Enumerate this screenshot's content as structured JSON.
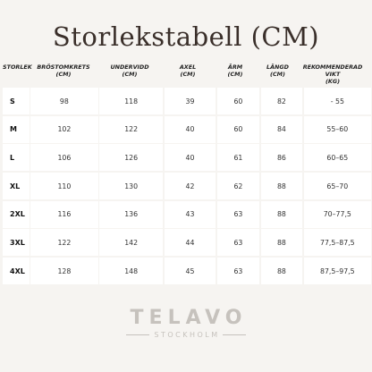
{
  "title": "Storlekstabell (CM)",
  "headers": [
    {
      "l1": "STORLEK",
      "l2": ""
    },
    {
      "l1": "BRÖSTOMKRETS",
      "l2": "(CM)"
    },
    {
      "l1": "UNDERVIDD",
      "l2": "(CM)"
    },
    {
      "l1": "AXEL",
      "l2": "(CM)"
    },
    {
      "l1": "ÄRM",
      "l2": "(CM)"
    },
    {
      "l1": "LÄNGD",
      "l2": "(CM)"
    },
    {
      "l1": "REKOMMENDERAD VIKT",
      "l2": "(KG)"
    }
  ],
  "rows": [
    [
      "S",
      "98",
      "118",
      "39",
      "60",
      "82",
      "- 55"
    ],
    [
      "M",
      "102",
      "122",
      "40",
      "60",
      "84",
      "55–60"
    ],
    [
      "L",
      "106",
      "126",
      "40",
      "61",
      "86",
      "60–65"
    ],
    [
      "XL",
      "110",
      "130",
      "42",
      "62",
      "88",
      "65–70"
    ],
    [
      "2XL",
      "116",
      "136",
      "43",
      "63",
      "88",
      "70–77,5"
    ],
    [
      "3XL",
      "122",
      "142",
      "44",
      "63",
      "88",
      "77,5–87,5"
    ],
    [
      "4XL",
      "128",
      "148",
      "45",
      "63",
      "88",
      "87,5–97,5"
    ]
  ],
  "logo": {
    "main": "TELAVO",
    "sub": "STOCKHOLM"
  }
}
